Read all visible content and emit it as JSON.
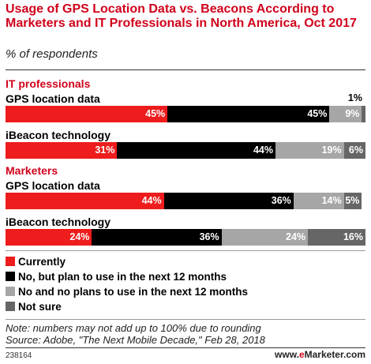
{
  "chart_data": {
    "type": "bar",
    "stacked": true,
    "orientation": "horizontal",
    "title": "Usage of GPS Location Data vs. Beacons According to Marketers and IT Professionals in North America, Oct 2017",
    "subtitle": "% of respondents",
    "value_suffix": "%",
    "xlim": [
      0,
      100
    ],
    "groups": [
      {
        "name": "IT professionals",
        "rows": [
          {
            "label": "GPS location data",
            "values": [
              45,
              45,
              9,
              1
            ]
          },
          {
            "label": "iBeacon technology",
            "values": [
              31,
              44,
              19,
              6
            ]
          }
        ]
      },
      {
        "name": "Marketers",
        "rows": [
          {
            "label": "GPS location data",
            "values": [
              44,
              36,
              14,
              5
            ]
          },
          {
            "label": "iBeacon technology",
            "values": [
              24,
              36,
              24,
              16
            ]
          }
        ]
      }
    ],
    "series": [
      {
        "name": "Currently",
        "color": "#ee1c1c"
      },
      {
        "name": "No, but plan to use in the next 12 months",
        "color": "#000000"
      },
      {
        "name": "No and no plans to use in the next 12 months",
        "color": "#a6a6a6"
      },
      {
        "name": "Not sure",
        "color": "#666666"
      }
    ],
    "legend_position": "bottom-left",
    "grid": false
  },
  "footer": {
    "note": "Note: numbers may not add up to 100% due to rounding",
    "source": "Source: Adobe, \"The Next Mobile Decade,\" Feb 28, 2018",
    "chart_id": "238164",
    "brand_prefix": "www.",
    "brand_e": "e",
    "brand_rest": "Marketer.com"
  }
}
